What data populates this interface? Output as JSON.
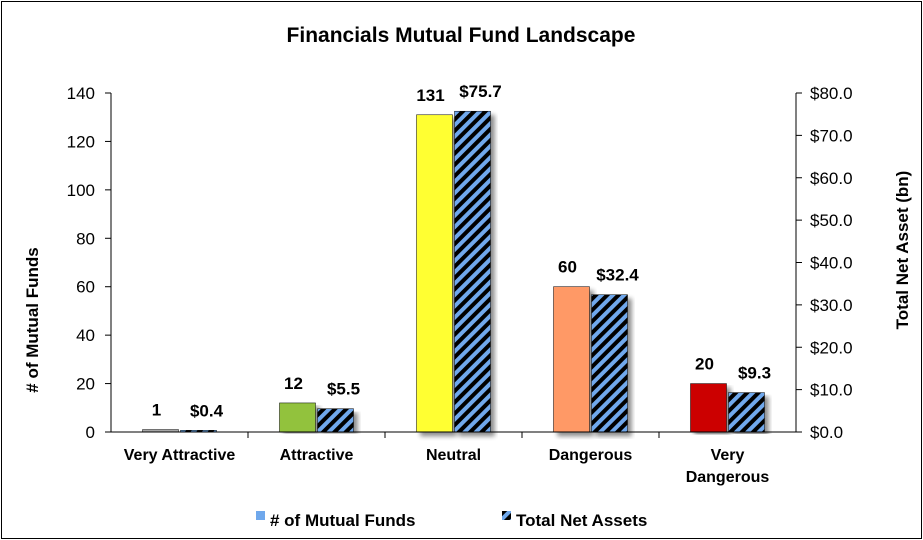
{
  "chart_data": {
    "type": "bar",
    "title": "Financials Mutual Fund Landscape",
    "categories": [
      [
        "Very Attractive"
      ],
      [
        "Attractive"
      ],
      [
        "Neutral"
      ],
      [
        "Dangerous"
      ],
      [
        "Very",
        "Dangerous"
      ]
    ],
    "series": [
      {
        "name": "# of Mutual Funds",
        "axis": "left",
        "values": [
          1,
          12,
          131,
          60,
          20
        ],
        "labels": [
          "1",
          "12",
          "131",
          "60",
          "20"
        ],
        "colors": [
          "#a6a6a6",
          "#92c23d",
          "#ffff33",
          "#ff9966",
          "#cc0000"
        ],
        "legend_color": "#6fa8ec"
      },
      {
        "name": "Total Net Assets",
        "axis": "right",
        "values": [
          0.4,
          5.5,
          75.7,
          32.4,
          9.3
        ],
        "labels": [
          "$0.4",
          "$5.5",
          "$75.7",
          "$32.4",
          "$9.3"
        ],
        "pattern": "diagonal-stripes",
        "colors": [
          "#000000",
          "#6fa8ec"
        ]
      }
    ],
    "ylabel": "# of Mutual Funds",
    "ylim": [
      0,
      140
    ],
    "yticks": [
      "0",
      "20",
      "40",
      "60",
      "80",
      "100",
      "120",
      "140"
    ],
    "y2label": "Total Net Asset (bn)",
    "y2lim": [
      0,
      80
    ],
    "y2ticks": [
      "$0.0",
      "$10.0",
      "$20.0",
      "$30.0",
      "$40.0",
      "$50.0",
      "$60.0",
      "$70.0",
      "$80.0"
    ],
    "legend_position": "bottom",
    "grid": false
  }
}
